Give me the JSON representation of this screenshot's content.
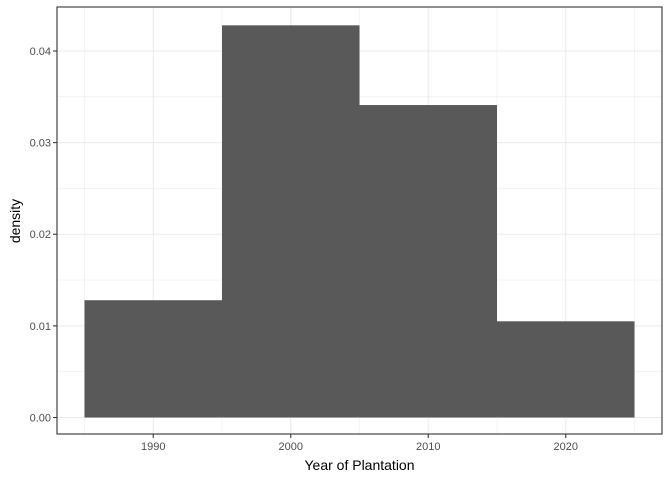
{
  "chart_data": {
    "type": "bar",
    "title": "",
    "xlabel": "Year of Plantation",
    "ylabel": "density",
    "xlim": [
      1983,
      2027
    ],
    "ylim": [
      -0.0018,
      0.0448
    ],
    "x_ticks": [
      1990,
      2000,
      2010,
      2020
    ],
    "y_ticks": [
      0.0,
      0.01,
      0.02,
      0.03,
      0.04
    ],
    "y_tick_labels": [
      "0.00",
      "0.01",
      "0.02",
      "0.03",
      "0.04"
    ],
    "bins": [
      {
        "x0": 1985,
        "x1": 1995,
        "value": 0.0128
      },
      {
        "x0": 1995,
        "x1": 2005,
        "value": 0.0428
      },
      {
        "x0": 2005,
        "x1": 2015,
        "value": 0.0341
      },
      {
        "x0": 2015,
        "x1": 2025,
        "value": 0.0105
      }
    ],
    "grid": true,
    "legend": "none",
    "bar_color": "#595959",
    "panel_border_color": "#333333",
    "grid_color": "#ebebeb"
  }
}
